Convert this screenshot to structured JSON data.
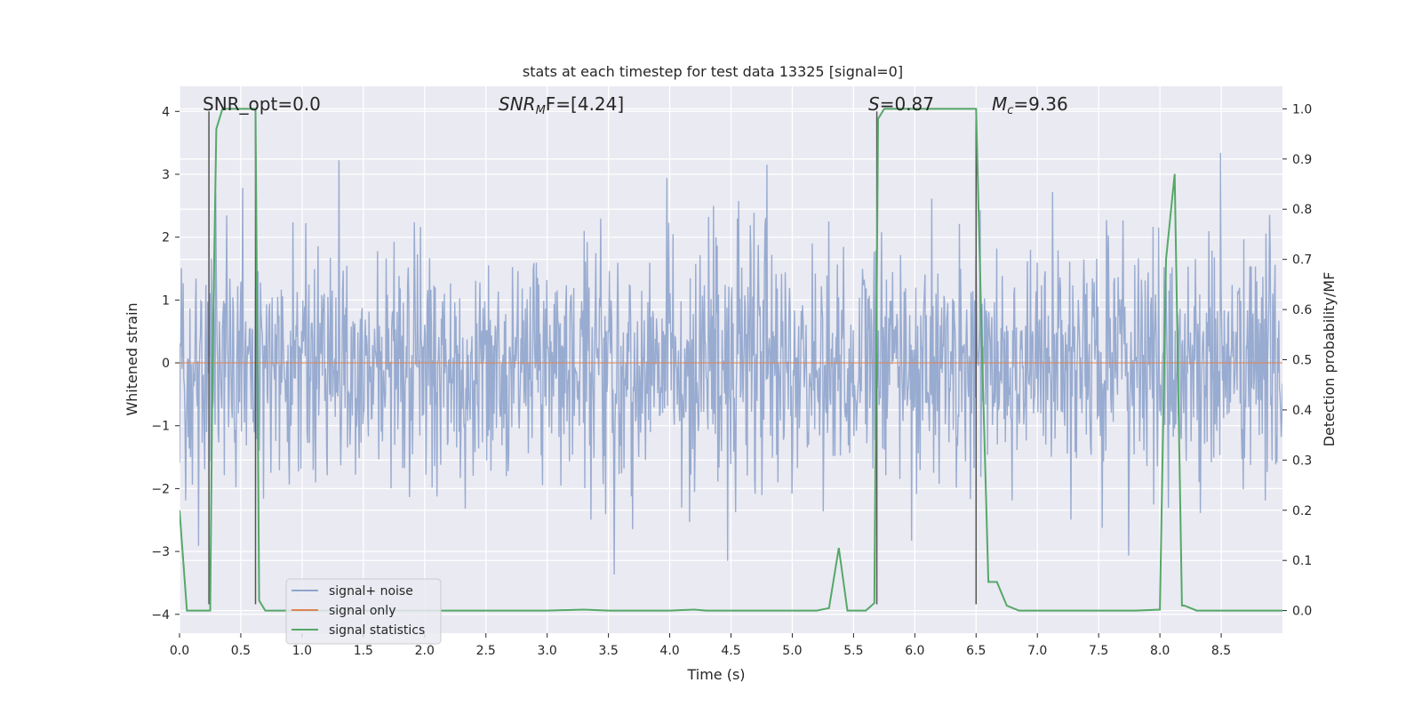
{
  "chart_data": {
    "type": "line",
    "title": "stats at each timestep for test data 13325 [signal=0]",
    "xlabel": "Time (s)",
    "ylabel": "Whitened strain",
    "y2label": "Detection probability/MF",
    "xlim": [
      0,
      9.0
    ],
    "ylim": [
      -4.3,
      4.4
    ],
    "y2lim": [
      -0.045,
      1.045
    ],
    "xticks": [
      0.0,
      0.5,
      1.0,
      1.5,
      2.0,
      2.5,
      3.0,
      3.5,
      4.0,
      4.5,
      5.0,
      5.5,
      6.0,
      6.5,
      7.0,
      7.5,
      8.0,
      8.5
    ],
    "xtick_labels": [
      "0.0",
      "0.5",
      "1.0",
      "1.5",
      "2.0",
      "2.5",
      "3.0",
      "3.5",
      "4.0",
      "4.5",
      "5.0",
      "5.5",
      "6.0",
      "6.5",
      "7.0",
      "7.5",
      "8.0",
      "8.5"
    ],
    "yticks": [
      4,
      3,
      2,
      1,
      0,
      -1,
      -2,
      -3,
      -4
    ],
    "ytick_labels": [
      "4",
      "3",
      "2",
      "1",
      "0",
      "−1",
      "−2",
      "−3",
      "−4"
    ],
    "y2ticks": [
      1.0,
      0.9,
      0.8,
      0.7,
      0.6,
      0.5,
      0.4,
      0.3,
      0.2,
      0.1,
      0.0
    ],
    "y2tick_labels": [
      "1.0",
      "0.9",
      "0.8",
      "0.7",
      "0.6",
      "0.5",
      "0.4",
      "0.3",
      "0.2",
      "0.1",
      "0.0"
    ],
    "grid": true,
    "legend_position": "lower-left",
    "annotations": {
      "snr_opt": "SNR_opt=0.0",
      "snr_mf_main": "SNR",
      "snr_mf_sub": "M",
      "snr_mf_rest": "F=[4.24]",
      "s_main": "S",
      "s_rest": "=0.87",
      "mc_main": "M",
      "mc_sub": "c",
      "mc_rest": "=9.36"
    },
    "vertical_markers": [
      0.24,
      0.62,
      5.69,
      6.5
    ],
    "series": [
      {
        "name": "signal+ noise",
        "color": "#8fa4cc",
        "noise_std": 0.95,
        "samples": 1800
      },
      {
        "name": "signal only",
        "color": "#dd8452",
        "value": 0.0
      },
      {
        "name": "signal statistics",
        "color": "#55a868",
        "x": [
          0.0,
          0.06,
          0.1,
          0.15,
          0.2,
          0.25,
          0.27,
          0.3,
          0.35,
          0.4,
          0.45,
          0.5,
          0.55,
          0.6,
          0.62,
          0.65,
          0.7,
          0.75,
          0.8,
          1.0,
          2.0,
          3.0,
          3.3,
          3.5,
          4.0,
          4.2,
          4.3,
          4.4,
          5.0,
          5.2,
          5.3,
          5.38,
          5.45,
          5.5,
          5.6,
          5.67,
          5.7,
          5.75,
          6.0,
          6.2,
          6.5,
          6.55,
          6.6,
          6.67,
          6.75,
          6.85,
          7.0,
          7.5,
          7.8,
          8.0,
          8.05,
          8.12,
          8.18,
          8.2,
          8.3,
          8.5,
          9.0
        ],
        "y": [
          0.2,
          0.0,
          0.0,
          0.0,
          0.0,
          0.0,
          0.5,
          0.96,
          1.0,
          1.0,
          1.0,
          1.0,
          1.0,
          1.0,
          1.0,
          0.02,
          0.0,
          0.0,
          0.0,
          0.0,
          0.0,
          0.0,
          0.002,
          0.0,
          0.0,
          0.002,
          0.0,
          0.0,
          0.0,
          0.0,
          0.005,
          0.125,
          0.0,
          0.0,
          0.0,
          0.015,
          0.98,
          1.0,
          1.0,
          1.0,
          1.0,
          0.5,
          0.057,
          0.057,
          0.01,
          0.0,
          0.0,
          0.0,
          0.0,
          0.002,
          0.7,
          0.87,
          0.01,
          0.01,
          0.0,
          0.0,
          0.0
        ]
      }
    ]
  }
}
